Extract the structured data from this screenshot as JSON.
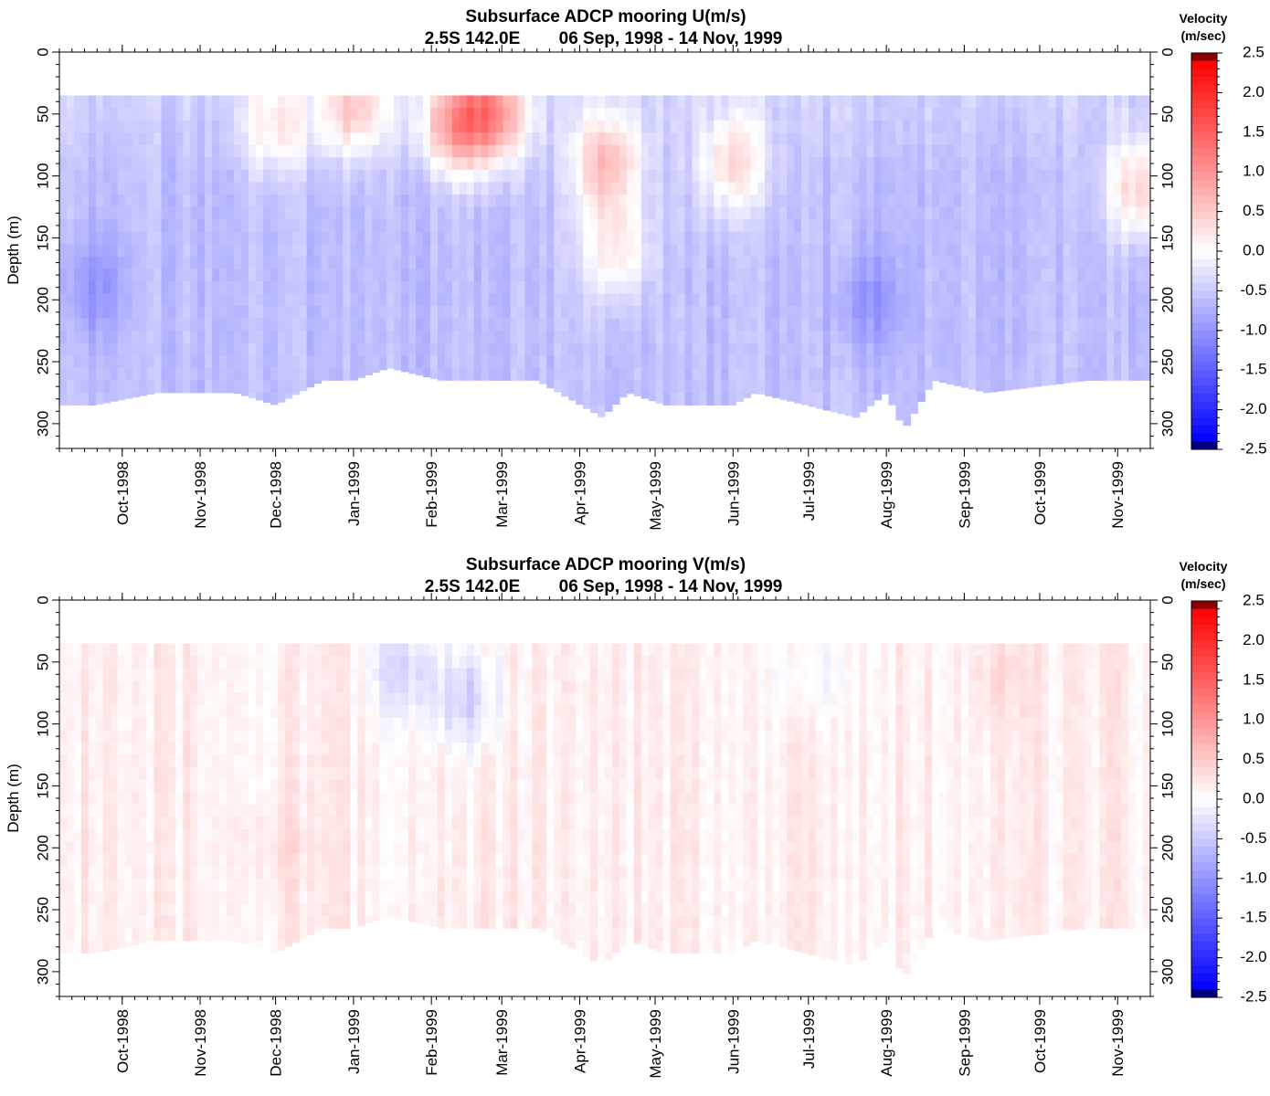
{
  "chart_data": [
    {
      "type": "heatmap",
      "title": "Subsurface ADCP mooring U(m/s)",
      "subtitle_location": "2.5S 142.0E",
      "subtitle_dates": "06 Sep, 1998 - 14 Nov, 1999",
      "ylabel": "Depth (m)",
      "ylim": [
        320,
        0
      ],
      "yticks": [
        "0",
        "50",
        "100",
        "150",
        "200",
        "250",
        "300"
      ],
      "xlim": [
        "1998-09-06",
        "1999-11-14"
      ],
      "xticks": [
        {
          "date": "1998-10-01",
          "label": "Oct-1998"
        },
        {
          "date": "1998-11-01",
          "label": "Nov-1998"
        },
        {
          "date": "1998-12-01",
          "label": "Dec-1998"
        },
        {
          "date": "1999-01-01",
          "label": "Jan-1999"
        },
        {
          "date": "1999-02-01",
          "label": "Feb-1999"
        },
        {
          "date": "1999-03-01",
          "label": "Mar-1999"
        },
        {
          "date": "1999-04-01",
          "label": "Apr-1999"
        },
        {
          "date": "1999-05-01",
          "label": "May-1999"
        },
        {
          "date": "1999-06-01",
          "label": "Jun-1999"
        },
        {
          "date": "1999-07-01",
          "label": "Jul-1999"
        },
        {
          "date": "1999-08-01",
          "label": "Aug-1999"
        },
        {
          "date": "1999-09-01",
          "label": "Sep-1999"
        },
        {
          "date": "1999-10-01",
          "label": "Oct-1999"
        },
        {
          "date": "1999-11-01",
          "label": "Nov-1999"
        }
      ],
      "data_depth_top": 35,
      "bottom_depth_profile": [
        {
          "date": "1998-09-06",
          "depth": 285
        },
        {
          "date": "1998-09-20",
          "depth": 285
        },
        {
          "date": "1998-10-15",
          "depth": 275
        },
        {
          "date": "1998-11-15",
          "depth": 275
        },
        {
          "date": "1998-12-01",
          "depth": 285
        },
        {
          "date": "1998-12-20",
          "depth": 265
        },
        {
          "date": "1999-01-01",
          "depth": 265
        },
        {
          "date": "1999-01-15",
          "depth": 255
        },
        {
          "date": "1999-02-05",
          "depth": 265
        },
        {
          "date": "1999-03-15",
          "depth": 265
        },
        {
          "date": "1999-04-10",
          "depth": 295
        },
        {
          "date": "1999-04-20",
          "depth": 275
        },
        {
          "date": "1999-05-05",
          "depth": 285
        },
        {
          "date": "1999-06-01",
          "depth": 285
        },
        {
          "date": "1999-06-10",
          "depth": 275
        },
        {
          "date": "1999-07-20",
          "depth": 295
        },
        {
          "date": "1999-08-01",
          "depth": 275
        },
        {
          "date": "1999-08-08",
          "depth": 305
        },
        {
          "date": "1999-08-20",
          "depth": 265
        },
        {
          "date": "1999-09-10",
          "depth": 275
        },
        {
          "date": "1999-10-20",
          "depth": 265
        },
        {
          "date": "1999-11-14",
          "depth": 265
        }
      ],
      "value_fields": {
        "background": -0.6,
        "features": [
          {
            "date": "1998-12-01",
            "depth": 60,
            "value": 0.1
          },
          {
            "date": "1999-01-01",
            "depth": 45,
            "value": 0.4
          },
          {
            "date": "1999-02-10",
            "depth": 60,
            "value": 0.6
          },
          {
            "date": "1999-02-25",
            "depth": 50,
            "value": 0.9
          },
          {
            "date": "1999-04-12",
            "depth": 90,
            "value": 0.6
          },
          {
            "date": "1999-04-15",
            "depth": 160,
            "value": 0.2
          },
          {
            "date": "1999-06-01",
            "depth": 90,
            "value": 0.3
          },
          {
            "date": "1999-11-10",
            "depth": 110,
            "value": 0.4
          },
          {
            "date": "1998-09-20",
            "depth": 190,
            "value": -1.0
          },
          {
            "date": "1999-07-25",
            "depth": 200,
            "value": -1.0
          }
        ]
      }
    },
    {
      "type": "heatmap",
      "title": "Subsurface ADCP mooring V(m/s)",
      "subtitle_location": "2.5S 142.0E",
      "subtitle_dates": "06 Sep, 1998 - 14 Nov, 1999",
      "ylabel": "Depth (m)",
      "ylim": [
        320,
        0
      ],
      "yticks": [
        "0",
        "50",
        "100",
        "150",
        "200",
        "250",
        "300"
      ],
      "xlim": [
        "1998-09-06",
        "1999-11-14"
      ],
      "xticks": [
        {
          "date": "1998-10-01",
          "label": "Oct-1998"
        },
        {
          "date": "1998-11-01",
          "label": "Nov-1998"
        },
        {
          "date": "1998-12-01",
          "label": "Dec-1998"
        },
        {
          "date": "1999-01-01",
          "label": "Jan-1999"
        },
        {
          "date": "1999-02-01",
          "label": "Feb-1999"
        },
        {
          "date": "1999-03-01",
          "label": "Mar-1999"
        },
        {
          "date": "1999-04-01",
          "label": "Apr-1999"
        },
        {
          "date": "1999-05-01",
          "label": "May-1999"
        },
        {
          "date": "1999-06-01",
          "label": "Jun-1999"
        },
        {
          "date": "1999-07-01",
          "label": "Jul-1999"
        },
        {
          "date": "1999-08-01",
          "label": "Aug-1999"
        },
        {
          "date": "1999-09-01",
          "label": "Sep-1999"
        },
        {
          "date": "1999-10-01",
          "label": "Oct-1999"
        },
        {
          "date": "1999-11-01",
          "label": "Nov-1999"
        }
      ],
      "data_depth_top": 35,
      "bottom_depth_profile": [
        {
          "date": "1998-09-06",
          "depth": 285
        },
        {
          "date": "1998-09-20",
          "depth": 285
        },
        {
          "date": "1998-10-15",
          "depth": 275
        },
        {
          "date": "1998-11-15",
          "depth": 275
        },
        {
          "date": "1998-12-01",
          "depth": 285
        },
        {
          "date": "1998-12-20",
          "depth": 265
        },
        {
          "date": "1999-01-01",
          "depth": 265
        },
        {
          "date": "1999-01-15",
          "depth": 255
        },
        {
          "date": "1999-02-05",
          "depth": 265
        },
        {
          "date": "1999-03-15",
          "depth": 265
        },
        {
          "date": "1999-04-10",
          "depth": 295
        },
        {
          "date": "1999-04-20",
          "depth": 275
        },
        {
          "date": "1999-05-05",
          "depth": 285
        },
        {
          "date": "1999-06-01",
          "depth": 285
        },
        {
          "date": "1999-06-10",
          "depth": 275
        },
        {
          "date": "1999-07-20",
          "depth": 295
        },
        {
          "date": "1999-08-01",
          "depth": 275
        },
        {
          "date": "1999-08-08",
          "depth": 305
        },
        {
          "date": "1999-08-20",
          "depth": 265
        },
        {
          "date": "1999-09-10",
          "depth": 275
        },
        {
          "date": "1999-10-20",
          "depth": 265
        },
        {
          "date": "1999-11-14",
          "depth": 265
        }
      ],
      "value_fields": {
        "background": 0.15,
        "features": [
          {
            "date": "1999-02-15",
            "depth": 80,
            "value": -0.4
          },
          {
            "date": "1999-01-20",
            "depth": 55,
            "value": -0.3
          },
          {
            "date": "1999-07-01",
            "depth": 60,
            "value": -0.1
          },
          {
            "date": "1999-09-15",
            "depth": 60,
            "value": 0.3
          },
          {
            "date": "1998-12-01",
            "depth": 200,
            "value": 0.3
          }
        ]
      }
    }
  ],
  "colorbar": {
    "title_line1": "Velocity",
    "title_line2": "(m/sec)",
    "range": [
      -2.5,
      2.5
    ],
    "labels": [
      "2.5",
      "2.0",
      "1.5",
      "1.0",
      "0.5",
      "0.0",
      "-0.5",
      "-1.0",
      "-1.5",
      "-2.0",
      "-2.5"
    ],
    "colors": {
      "max": "#8b0000",
      "positive_strong": "#ff0000",
      "zero": "#ffffff",
      "negative_strong": "#0000ff",
      "min": "#000080"
    }
  }
}
